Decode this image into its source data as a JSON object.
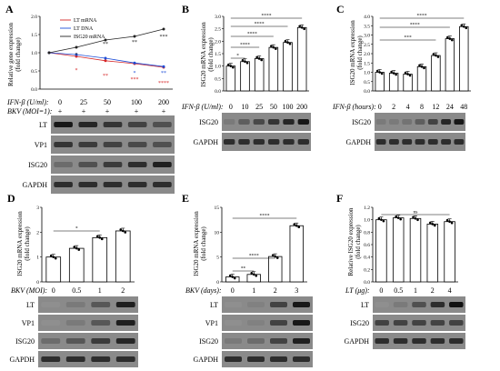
{
  "panels": {
    "A": {
      "letter": "A",
      "ylabel_line1": "Relative gene expression",
      "ylabel_line2": "(fold change)",
      "row1_label": "IFN-β (U/ml):",
      "row1_values": [
        "0",
        "25",
        "50",
        "100",
        "200"
      ],
      "row2_label": "BKV (MOI=1):",
      "row2_values": [
        "+",
        "+",
        "+",
        "+",
        "+"
      ],
      "blots": [
        "LT",
        "VP1",
        "ISG20",
        "GAPDH"
      ],
      "stars": [
        {
          "text": "*",
          "color": "#222222"
        },
        {
          "text": "**",
          "color": "#222222"
        },
        {
          "text": "**",
          "color": "#222222"
        },
        {
          "text": "***",
          "color": "#222222"
        },
        {
          "text": "*",
          "color": "#d62728"
        },
        {
          "text": "**",
          "color": "#d62728"
        },
        {
          "text": "***",
          "color": "#d62728"
        },
        {
          "text": "****",
          "color": "#d62728"
        },
        {
          "text": "*",
          "color": "#1f4fd8"
        },
        {
          "text": "**",
          "color": "#1f4fd8"
        }
      ]
    },
    "B": {
      "letter": "B",
      "ylabel_line1": "ISG20 mRNA expression",
      "ylabel_line2": "(fold change)",
      "xlabel": "IFN-β (U/ml):",
      "blots": [
        "ISG20",
        "GAPDH"
      ],
      "sig": [
        "*",
        "****",
        "****",
        "****",
        "****"
      ]
    },
    "C": {
      "letter": "C",
      "ylabel_line1": "ISG20 mRNA expression",
      "ylabel_line2": "(fold change)",
      "xlabel": "IFN-β (hours):",
      "blots": [
        "ISG20",
        "GAPDH"
      ],
      "sig": [
        "***",
        "****",
        "****"
      ]
    },
    "D": {
      "letter": "D",
      "ylabel_line1": "ISG20 mRNA expression",
      "ylabel_line2": "(fold change)",
      "xlabel": "BKV (MOI):",
      "blots": [
        "LT",
        "VP1",
        "ISG20",
        "GAPDH"
      ],
      "sig": [
        "*"
      ]
    },
    "E": {
      "letter": "E",
      "ylabel_line1": "ISG20 mRNA expression",
      "ylabel_line2": "(fold change)",
      "xlabel": "BKV (days):",
      "blots": [
        "LT",
        "VP1",
        "ISG20",
        "GAPDH"
      ],
      "sig": [
        "**",
        "****",
        "****"
      ]
    },
    "F": {
      "letter": "F",
      "ylabel_line1": "Relative ISG20 expression",
      "ylabel_line2": "(fold change)",
      "xlabel": "LT (μg):",
      "blots": [
        "LT",
        "ISG20",
        "GAPDH"
      ],
      "sig": [
        "ns"
      ]
    }
  },
  "chart_data": [
    {
      "panel": "A",
      "type": "line",
      "xlabel": "IFN-β (U/ml)",
      "ylabel": "Relative gene expression (fold change)",
      "x": [
        0,
        25,
        50,
        100,
        200
      ],
      "ylim": [
        0,
        2.0
      ],
      "yticks": [
        0,
        0.5,
        1.0,
        1.5,
        2.0
      ],
      "legend_position": "top-left",
      "series": [
        {
          "name": "LT mRNA",
          "color": "#d62728",
          "values": [
            1.0,
            0.9,
            0.78,
            0.7,
            0.6
          ]
        },
        {
          "name": "LT DNA",
          "color": "#1f4fd8",
          "values": [
            1.0,
            0.95,
            0.85,
            0.72,
            0.62
          ]
        },
        {
          "name": "ISG20 mRNA",
          "color": "#222222",
          "values": [
            1.0,
            1.15,
            1.35,
            1.45,
            1.65
          ]
        }
      ]
    },
    {
      "panel": "B",
      "type": "bar",
      "categories": [
        "0",
        "10",
        "25",
        "50",
        "100",
        "200"
      ],
      "values": [
        1.0,
        1.18,
        1.3,
        1.75,
        1.95,
        2.55
      ],
      "ylim": [
        0,
        3.0
      ],
      "yticks": [
        0,
        0.5,
        1.0,
        1.5,
        2.0,
        2.5,
        3.0
      ],
      "xlabel": "IFN-β (U/ml)",
      "ylabel": "ISG20 mRNA expression (fold change)"
    },
    {
      "panel": "C",
      "type": "bar",
      "categories": [
        "0",
        "2",
        "4",
        "8",
        "12",
        "24",
        "48"
      ],
      "values": [
        1.0,
        0.95,
        0.9,
        1.3,
        1.9,
        2.8,
        3.45
      ],
      "ylim": [
        0,
        4.0
      ],
      "yticks": [
        0,
        0.5,
        1.0,
        1.5,
        2.0,
        2.5,
        3.0,
        3.5,
        4.0
      ],
      "xlabel": "IFN-β (hours)",
      "ylabel": "ISG20 mRNA expression (fold change)"
    },
    {
      "panel": "D",
      "type": "bar",
      "categories": [
        "0",
        "0.5",
        "1",
        "2"
      ],
      "values": [
        1.0,
        1.35,
        1.78,
        2.05
      ],
      "ylim": [
        0,
        3.0
      ],
      "yticks": [
        0,
        1,
        2,
        3
      ],
      "xlabel": "BKV (MOI)",
      "ylabel": "ISG20 mRNA expression (fold change)"
    },
    {
      "panel": "E",
      "type": "bar",
      "categories": [
        "0",
        "1",
        "2",
        "3"
      ],
      "values": [
        1.0,
        1.5,
        5.1,
        11.3
      ],
      "ylim": [
        0,
        15.0
      ],
      "yticks": [
        0,
        5,
        10,
        15
      ],
      "xlabel": "BKV (days)",
      "ylabel": "ISG20 mRNA expression (fold change)"
    },
    {
      "panel": "F",
      "type": "bar",
      "categories": [
        "0",
        "0.5",
        "1",
        "2",
        "4"
      ],
      "values": [
        1.0,
        1.03,
        1.02,
        0.93,
        0.97
      ],
      "ylim": [
        0,
        1.2
      ],
      "yticks": [
        0,
        0.2,
        0.4,
        0.6,
        0.8,
        1.0,
        1.2
      ],
      "xlabel": "LT (μg)",
      "ylabel": "Relative ISG20 expression (fold change)"
    }
  ]
}
